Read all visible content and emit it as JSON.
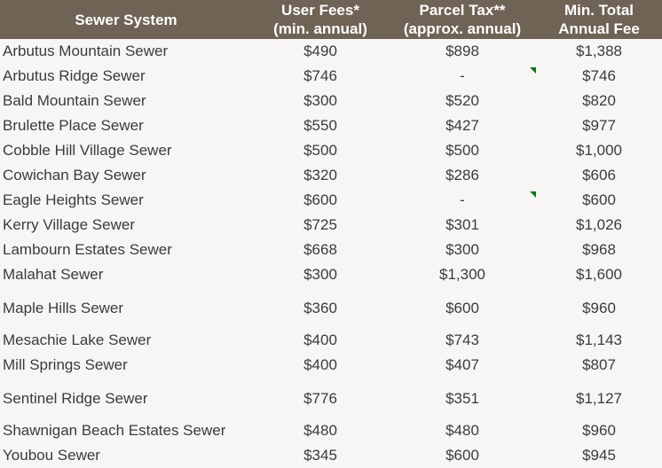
{
  "headers": [
    {
      "line1": "Sewer System",
      "line2": ""
    },
    {
      "line1": "User Fees*",
      "line2": "(min. annual)"
    },
    {
      "line1": "Parcel Tax**",
      "line2": "(approx. annual)"
    },
    {
      "line1": "Min. Total",
      "line2": "Annual Fee"
    }
  ],
  "rows": [
    {
      "name": "Arbutus Mountain Sewer",
      "user_fees": "$490",
      "parcel_tax": "$898",
      "total": "$1,388"
    },
    {
      "name": "Arbutus Ridge Sewer",
      "user_fees": "$746",
      "parcel_tax": "-",
      "total": "$746",
      "comment": true
    },
    {
      "name": "Bald Mountain Sewer",
      "user_fees": "$300",
      "parcel_tax": "$520",
      "total": "$820"
    },
    {
      "name": "Brulette Place Sewer",
      "user_fees": "$550",
      "parcel_tax": "$427",
      "total": "$977"
    },
    {
      "name": "Cobble Hill Village Sewer",
      "user_fees": "$500",
      "parcel_tax": "$500",
      "total": "$1,000"
    },
    {
      "name": "Cowichan Bay Sewer",
      "user_fees": "$320",
      "parcel_tax": "$286",
      "total": "$606"
    },
    {
      "name": "Eagle Heights Sewer",
      "user_fees": "$600",
      "parcel_tax": "-",
      "total": "$600",
      "comment": true
    },
    {
      "name": "Kerry Village Sewer",
      "user_fees": "$725",
      "parcel_tax": "$301",
      "total": "$1,026"
    },
    {
      "name": "Lambourn Estates Sewer",
      "user_fees": "$668",
      "parcel_tax": "$300",
      "total": "$968"
    },
    {
      "name": "Malahat Sewer",
      "user_fees": "$300",
      "parcel_tax": "$1,300",
      "total": "$1,600"
    },
    {
      "name": "Maple Hills Sewer",
      "user_fees": "$360",
      "parcel_tax": "$600",
      "total": "$960"
    },
    {
      "name": "Mesachie Lake Sewer",
      "user_fees": "$400",
      "parcel_tax": "$743",
      "total": "$1,143"
    },
    {
      "name": "Mill Springs Sewer",
      "user_fees": "$400",
      "parcel_tax": "$407",
      "total": "$807"
    },
    {
      "name": "Sentinel Ridge Sewer",
      "user_fees": "$776",
      "parcel_tax": "$351",
      "total": "$1,127"
    },
    {
      "name": "Shawnigan Beach Estates Sewer",
      "user_fees": "$480",
      "parcel_tax": "$480",
      "total": "$960"
    },
    {
      "name": "Youbou Sewer",
      "user_fees": "$345",
      "parcel_tax": "$600",
      "total": "$945"
    }
  ],
  "colors": {
    "header_bg": "#6e6354",
    "body_bg": "#f7f6f5",
    "comment_marker": "#0a7a0a"
  }
}
